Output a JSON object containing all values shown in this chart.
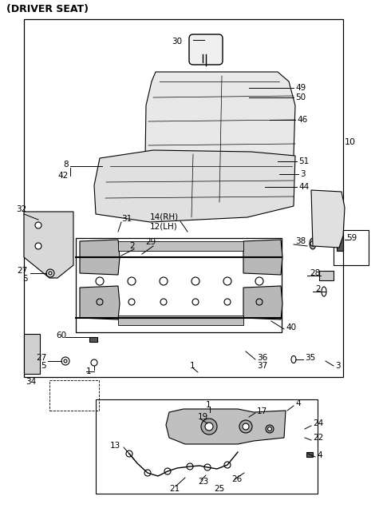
{
  "title": "(DRIVER SEAT)",
  "bg_color": "#ffffff",
  "line_color": "#000000",
  "title_fontsize": 9,
  "label_fontsize": 7.5,
  "fig_width": 4.8,
  "fig_height": 6.56,
  "dpi": 100
}
